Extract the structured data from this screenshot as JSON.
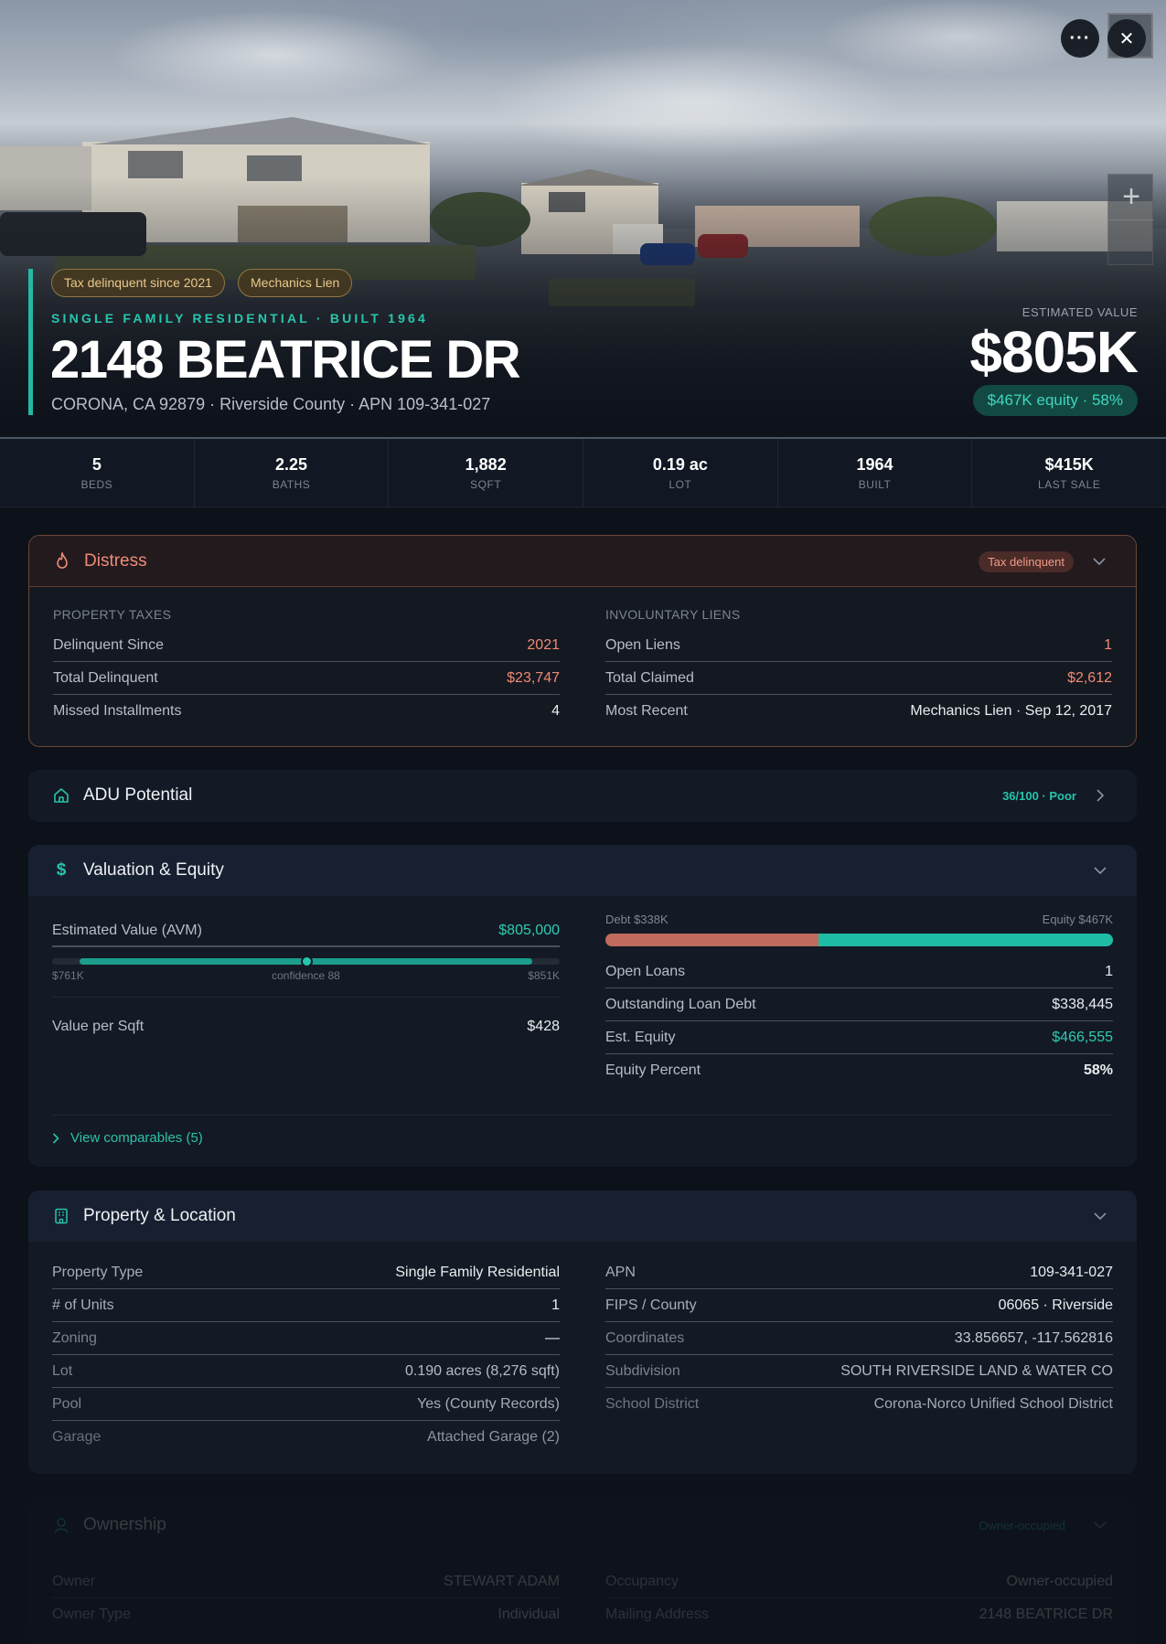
{
  "hero": {
    "badges": [
      "Tax delinquent since 2021",
      "Mechanics Lien"
    ],
    "subtitle": "SINGLE FAMILY RESIDENTIAL · BUILT 1964",
    "address": "2148 BEATRICE DR",
    "location": "CORONA, CA 92879 · Riverside County · APN 109-341-027",
    "est_label": "ESTIMATED VALUE",
    "est_value": "$805K",
    "equity_pill": "$467K equity · 58%",
    "more_label": "···",
    "close_label": "✕",
    "zoom_label": "+"
  },
  "stats": [
    {
      "value": "5",
      "label": "BEDS"
    },
    {
      "value": "2.25",
      "label": "BATHS"
    },
    {
      "value": "1,882",
      "label": "SQFT"
    },
    {
      "value": "0.19 ac",
      "label": "LOT"
    },
    {
      "value": "1964",
      "label": "BUILT"
    },
    {
      "value": "$415K",
      "label": "LAST SALE"
    }
  ],
  "distress": {
    "title": "Distress",
    "badge": "Tax delinquent",
    "left": {
      "label": "PROPERTY TAXES",
      "rows": [
        {
          "k": "Delinquent Since",
          "v": "2021"
        },
        {
          "k": "Total Delinquent",
          "v": "$23,747"
        },
        {
          "k": "Missed Installments",
          "v": "4"
        }
      ]
    },
    "right": {
      "label": "INVOLUNTARY LIENS",
      "rows": [
        {
          "k": "Open Liens",
          "v": "1"
        },
        {
          "k": "Total Claimed",
          "v": "$2,612"
        },
        {
          "k": "Most Recent",
          "v": "Mechanics Lien · Sep 12, 2017"
        }
      ]
    }
  },
  "adu": {
    "title": "ADU Potential",
    "score": "36/100 · Poor"
  },
  "valuation": {
    "title": "Valuation & Equity",
    "avm_label": "Estimated Value (AVM)",
    "avm_value": "$805,000",
    "avm_low": "$761K",
    "avm_mid": "confidence 88",
    "avm_high": "$851K",
    "avm_confidence": 88,
    "value_per_sqft_label": "Value per Sqft",
    "value_per_sqft": "$428",
    "debt_label": "Debt $338K",
    "equity_label": "Equity $467K",
    "debt_fraction": 0.42,
    "rows": [
      {
        "k": "Open Loans",
        "v": "1"
      },
      {
        "k": "Outstanding Loan Debt",
        "v": "$338,445"
      },
      {
        "k": "Est. Equity",
        "v": "$466,555"
      },
      {
        "k": "Equity Percent",
        "v": "58%"
      }
    ],
    "comparables": "View comparables (5)"
  },
  "property": {
    "title": "Property & Location",
    "left": [
      {
        "k": "Property Type",
        "v": "Single Family Residential"
      },
      {
        "k": "# of Units",
        "v": "1"
      },
      {
        "k": "Zoning",
        "v": "—"
      },
      {
        "k": "Lot",
        "v": "0.190 acres (8,276 sqft)"
      },
      {
        "k": "Pool",
        "v": "Yes (County Records)"
      },
      {
        "k": "Garage",
        "v": "Attached Garage (2)"
      }
    ],
    "right": [
      {
        "k": "APN",
        "v": "109-341-027"
      },
      {
        "k": "FIPS / County",
        "v": "06065 · Riverside"
      },
      {
        "k": "Coordinates",
        "v": "33.856657, -117.562816"
      },
      {
        "k": "Subdivision",
        "v": "SOUTH RIVERSIDE LAND & WATER CO"
      },
      {
        "k": "School District",
        "v": "Corona-Norco Unified School District"
      }
    ]
  },
  "ownership": {
    "title": "Ownership",
    "badge": "Owner-occupied",
    "left": [
      {
        "k": "Owner",
        "v": "STEWART ADAM"
      },
      {
        "k": "Owner Type",
        "v": "Individual"
      }
    ],
    "right": [
      {
        "k": "Occupancy",
        "v": "Owner-occupied"
      },
      {
        "k": "Mailing Address",
        "v": "2148 BEATRICE DR"
      }
    ]
  },
  "colors": {
    "accent": "#23b9a3",
    "danger": "#f08a73",
    "warning_badge": "#eac98b"
  }
}
